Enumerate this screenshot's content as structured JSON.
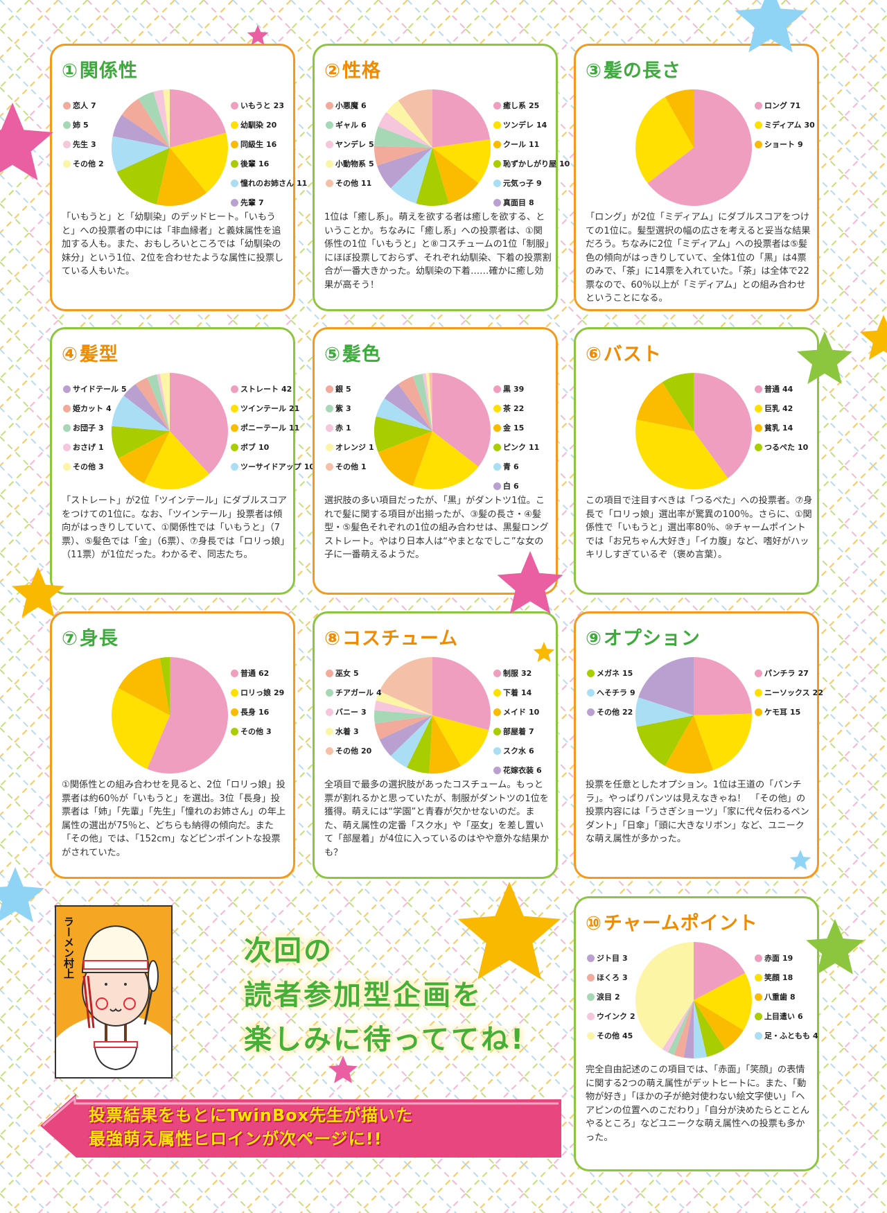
{
  "chart_data": [
    {
      "type": "pie",
      "number": "①",
      "title": "関係性",
      "title_color": "#3daa3c",
      "border_color": "#f39a1e",
      "right_items": [
        {
          "label": "いもうと",
          "value": 23,
          "color": "#f09ec0"
        },
        {
          "label": "幼馴染",
          "value": 20,
          "color": "#ffe000"
        },
        {
          "label": "同級生",
          "value": 16,
          "color": "#fbbc00"
        },
        {
          "label": "後輩",
          "value": 16,
          "color": "#a8cd00"
        },
        {
          "label": "憧れのお姉さん",
          "value": 11,
          "color": "#a9def5"
        },
        {
          "label": "先輩",
          "value": 7,
          "color": "#b9a0d0"
        }
      ],
      "left_items": [
        {
          "label": "恋人",
          "value": 7,
          "color": "#f2aa9a"
        },
        {
          "label": "姉",
          "value": 5,
          "color": "#a6d8b6"
        },
        {
          "label": "先生",
          "value": 3,
          "color": "#f5c6dc"
        },
        {
          "label": "その他",
          "value": 2,
          "color": "#fdf5a6"
        }
      ],
      "text": "「いもうと」と「幼馴染」のデッドヒート。「いもうと」への投票者の中には「非血縁者」と義妹属性を追加する人も。また、おもしろいところでは「幼馴染の妹分」という1位、2位を合わせたような属性に投票している人もいた。"
    },
    {
      "type": "pie",
      "number": "②",
      "title": "性格",
      "title_color": "#f08a00",
      "border_color": "#8cc63f",
      "right_items": [
        {
          "label": "癒し系",
          "value": 25,
          "color": "#f09ec0"
        },
        {
          "label": "ツンデレ",
          "value": 14,
          "color": "#ffe000"
        },
        {
          "label": "クール",
          "value": 11,
          "color": "#fbbc00"
        },
        {
          "label": "恥ずかしがり屋",
          "value": 10,
          "color": "#a8cd00"
        },
        {
          "label": "元気っ子",
          "value": 9,
          "color": "#a9def5"
        },
        {
          "label": "真面目",
          "value": 8,
          "color": "#b9a0d0"
        }
      ],
      "left_items": [
        {
          "label": "小悪魔",
          "value": 6,
          "color": "#f2aa9a"
        },
        {
          "label": "ギャル",
          "value": 6,
          "color": "#a6d8b6"
        },
        {
          "label": "ヤンデレ",
          "value": 5,
          "color": "#f5c6dc"
        },
        {
          "label": "小動物系",
          "value": 5,
          "color": "#fdf5a6"
        },
        {
          "label": "その他",
          "value": 11,
          "color": "#f5c0a8"
        }
      ],
      "text": "1位は「癒し系」。萌えを欲する者は癒しを欲する、ということか。ちなみに「癒し系」への投票者は、①関係性の1位「いもうと」と⑧コスチュームの1位「制服」にほぼ投票しておらず、それぞれ幼馴染、下着の投票割合が一番大きかった。幼馴染の下着……確かに癒し効果が高そう！"
    },
    {
      "type": "pie",
      "number": "③",
      "title": "髪の長さ",
      "title_color": "#3daa3c",
      "border_color": "#f39a1e",
      "right_items": [
        {
          "label": "ロング",
          "value": 71,
          "color": "#f09ec0"
        },
        {
          "label": "ミディアム",
          "value": 30,
          "color": "#ffe000"
        },
        {
          "label": "ショート",
          "value": 9,
          "color": "#fbbc00"
        }
      ],
      "left_items": [],
      "text": "「ロング」が2位「ミディアム」にダブルスコアをつけての1位に。髪型選択の幅の広さを考えると妥当な結果だろう。ちなみに2位「ミディアム」への投票者は⑤髪色の傾向がはっきりしていて、全体1位の「黒」は4票のみで、「茶」に14票を入れていた。「茶」は全体で22票なので、60％以上が「ミディアム」との組み合わせということになる。"
    },
    {
      "type": "pie",
      "number": "④",
      "title": "髪型",
      "title_color": "#f08a00",
      "border_color": "#8cc63f",
      "right_items": [
        {
          "label": "ストレート",
          "value": 42,
          "color": "#f09ec0"
        },
        {
          "label": "ツインテール",
          "value": 21,
          "color": "#ffe000"
        },
        {
          "label": "ポニーテール",
          "value": 11,
          "color": "#fbbc00"
        },
        {
          "label": "ボブ",
          "value": 10,
          "color": "#a8cd00"
        },
        {
          "label": "ツーサイドアップ",
          "value": 10,
          "color": "#a9def5"
        }
      ],
      "left_items": [
        {
          "label": "サイドテール",
          "value": 5,
          "color": "#b9a0d0"
        },
        {
          "label": "姫カット",
          "value": 4,
          "color": "#f2aa9a"
        },
        {
          "label": "お団子",
          "value": 3,
          "color": "#a6d8b6"
        },
        {
          "label": "おさげ",
          "value": 1,
          "color": "#f5c6dc"
        },
        {
          "label": "その他",
          "value": 3,
          "color": "#fdf5a6"
        }
      ],
      "text": "「ストレート」が2位「ツインテール」にダブルスコアをつけての1位に。なお、「ツインテール」投票者は傾向がはっきりしていて、①関係性では「いもうと」（7票）、⑤髪色では「金」（6票）、⑦身長では「ロリっ娘」（11票）が1位だった。わかるぞ、同志たち。"
    },
    {
      "type": "pie",
      "number": "⑤",
      "title": "髪色",
      "title_color": "#3daa3c",
      "border_color": "#f39a1e",
      "right_items": [
        {
          "label": "黒",
          "value": 39,
          "color": "#f09ec0"
        },
        {
          "label": "茶",
          "value": 22,
          "color": "#ffe000"
        },
        {
          "label": "金",
          "value": 15,
          "color": "#fbbc00"
        },
        {
          "label": "ピンク",
          "value": 11,
          "color": "#a8cd00"
        },
        {
          "label": "青",
          "value": 6,
          "color": "#a9def5"
        },
        {
          "label": "白",
          "value": 6,
          "color": "#b9a0d0"
        }
      ],
      "left_items": [
        {
          "label": "銀",
          "value": 5,
          "color": "#f2aa9a"
        },
        {
          "label": "紫",
          "value": 3,
          "color": "#a6d8b6"
        },
        {
          "label": "赤",
          "value": 1,
          "color": "#f5c6dc"
        },
        {
          "label": "オレンジ",
          "value": 1,
          "color": "#fdf5a6"
        },
        {
          "label": "その他",
          "value": 1,
          "color": "#f5c0a8"
        }
      ],
      "text": "選択肢の多い項目だったが、「黒」がダントツ1位。これで髪に関する項目が出揃ったが、③髪の長さ・④髪型・⑤髪色それぞれの1位の組み合わせは、黒髪ロングストレート。やはり日本人は“やまとなでしこ”な女の子に一番萌えるようだ。"
    },
    {
      "type": "pie",
      "number": "⑥",
      "title": "バスト",
      "title_color": "#f08a00",
      "border_color": "#8cc63f",
      "right_items": [
        {
          "label": "普通",
          "value": 44,
          "color": "#f09ec0"
        },
        {
          "label": "巨乳",
          "value": 42,
          "color": "#ffe000"
        },
        {
          "label": "貧乳",
          "value": 14,
          "color": "#fbbc00"
        },
        {
          "label": "つるぺた",
          "value": 10,
          "color": "#a8cd00"
        }
      ],
      "left_items": [],
      "text": "この項目で注目すべきは「つるぺた」への投票者。⑦身長で「ロリっ娘」選出率が驚異の100％。さらに、①関係性で「いもうと」選出率80％、⑩チャームポイントでは「お兄ちゃん大好き」「イカ腹」など、嗜好がハッキリしすぎているぞ（褒め言葉）。"
    },
    {
      "type": "pie",
      "number": "⑦",
      "title": "身長",
      "title_color": "#3daa3c",
      "border_color": "#f39a1e",
      "right_items": [
        {
          "label": "普通",
          "value": 62,
          "color": "#f09ec0"
        },
        {
          "label": "ロリっ娘",
          "value": 29,
          "color": "#ffe000"
        },
        {
          "label": "長身",
          "value": 16,
          "color": "#fbbc00"
        },
        {
          "label": "その他",
          "value": 3,
          "color": "#a8cd00"
        }
      ],
      "left_items": [],
      "text": "①関係性との組み合わせを見ると、2位「ロリっ娘」投票者は約60％が「いもうと」を選出。3位「長身」投票者は「姉」「先輩」「先生」「憧れのお姉さん」の年上属性の選出が75％と、どちらも納得の傾向だ。また「その他」では、「152cm」などピンポイントな投票がされていた。"
    },
    {
      "type": "pie",
      "number": "⑧",
      "title": "コスチューム",
      "title_color": "#f08a00",
      "border_color": "#8cc63f",
      "right_items": [
        {
          "label": "制服",
          "value": 32,
          "color": "#f09ec0"
        },
        {
          "label": "下着",
          "value": 14,
          "color": "#ffe000"
        },
        {
          "label": "メイド",
          "value": 10,
          "color": "#fbbc00"
        },
        {
          "label": "部屋着",
          "value": 7,
          "color": "#a8cd00"
        },
        {
          "label": "スク水",
          "value": 6,
          "color": "#a9def5"
        },
        {
          "label": "花嫁衣装",
          "value": 6,
          "color": "#b9a0d0"
        }
      ],
      "left_items": [
        {
          "label": "巫女",
          "value": 5,
          "color": "#f2aa9a"
        },
        {
          "label": "チアガール",
          "value": 4,
          "color": "#a6d8b6"
        },
        {
          "label": "バニー",
          "value": 3,
          "color": "#f5c6dc"
        },
        {
          "label": "水着",
          "value": 3,
          "color": "#fdf5a6"
        },
        {
          "label": "その他",
          "value": 20,
          "color": "#f5c0a8"
        }
      ],
      "text": "全項目で最多の選択肢があったコスチューム。もっと票が割れるかと思っていたが、制服がダントツの1位を獲得。萌えには“学園”と青春が欠かせないのだ。また、萌え属性の定番「スク水」や「巫女」を差し置いて「部屋着」が4位に入っているのはやや意外な結果かも？"
    },
    {
      "type": "pie",
      "number": "⑨",
      "title": "オプション",
      "title_color": "#3daa3c",
      "border_color": "#f39a1e",
      "right_items": [
        {
          "label": "パンチラ",
          "value": 27,
          "color": "#f09ec0"
        },
        {
          "label": "ニーソックス",
          "value": 22,
          "color": "#ffe000"
        },
        {
          "label": "ケモ耳",
          "value": 15,
          "color": "#fbbc00"
        }
      ],
      "left_items": [
        {
          "label": "メガネ",
          "value": 15,
          "color": "#a8cd00"
        },
        {
          "label": "へそチラ",
          "value": 9,
          "color": "#a9def5"
        },
        {
          "label": "その他",
          "value": 22,
          "color": "#b9a0d0"
        }
      ],
      "text": "投票を任意としたオプション。1位は王道の「パンチラ」。やっぱりパンツは見えなきゃね！　「その他」の投票内容には「うさぎショーツ」「家に代々伝わるペンダント」「日傘」「頭に大きなリボン」など、ユニークな萌え属性が多かった。"
    },
    {
      "type": "pie",
      "number": "⑩",
      "title": "チャームポイント",
      "title_color": "#f08a00",
      "border_color": "#8cc63f",
      "right_items": [
        {
          "label": "赤面",
          "value": 19,
          "color": "#f09ec0"
        },
        {
          "label": "笑顔",
          "value": 18,
          "color": "#ffe000"
        },
        {
          "label": "八重歯",
          "value": 8,
          "color": "#fbbc00"
        },
        {
          "label": "上目遣い",
          "value": 6,
          "color": "#a8cd00"
        },
        {
          "label": "足・ふともも",
          "value": 4,
          "color": "#a9def5"
        }
      ],
      "left_items": [
        {
          "label": "ジト目",
          "value": 3,
          "color": "#b9a0d0"
        },
        {
          "label": "ほくろ",
          "value": 3,
          "color": "#f2aa9a"
        },
        {
          "label": "涙目",
          "value": 2,
          "color": "#a6d8b6"
        },
        {
          "label": "ウインク",
          "value": 2,
          "color": "#f5c6dc"
        },
        {
          "label": "その他",
          "value": 45,
          "color": "#fdf5a6"
        }
      ],
      "text": "完全自由記述のこの項目では、「赤面」「笑顔」の表情に関する2つの萌え属性がデットヒートに。また、「動物が好き」「ほかの子が絶対使わない絵文字使い」「ヘアピンの位置へのこだわり」「自分が決めたらとことんやるところ」などユニークな萌え属性への投票も多かった。"
    }
  ],
  "mascot": {
    "name": "ラーメン村上",
    "bowl_top": "ラ",
    "bowl_bottom": "ーメン"
  },
  "headline": [
    "次回の",
    "読者参加型企画を",
    "楽しみに待っててね!"
  ],
  "banner": {
    "line1": "投票結果をもとにTwinBox先生が描いた",
    "line2": "最強萌え属性ヒロインが次ページに!!",
    "color": "#e8467f"
  }
}
